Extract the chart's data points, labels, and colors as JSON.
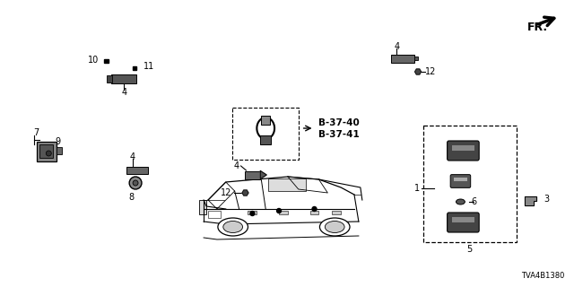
{
  "bg_color": "#ffffff",
  "diagram_code": "TVA4B1380",
  "figsize": [
    6.4,
    3.2
  ],
  "dpi": 100,
  "fr_label": "FR.",
  "ref_labels": [
    "B-37-40",
    "B-37-41"
  ],
  "part_label_fontsize": 7,
  "code_fontsize": 6
}
